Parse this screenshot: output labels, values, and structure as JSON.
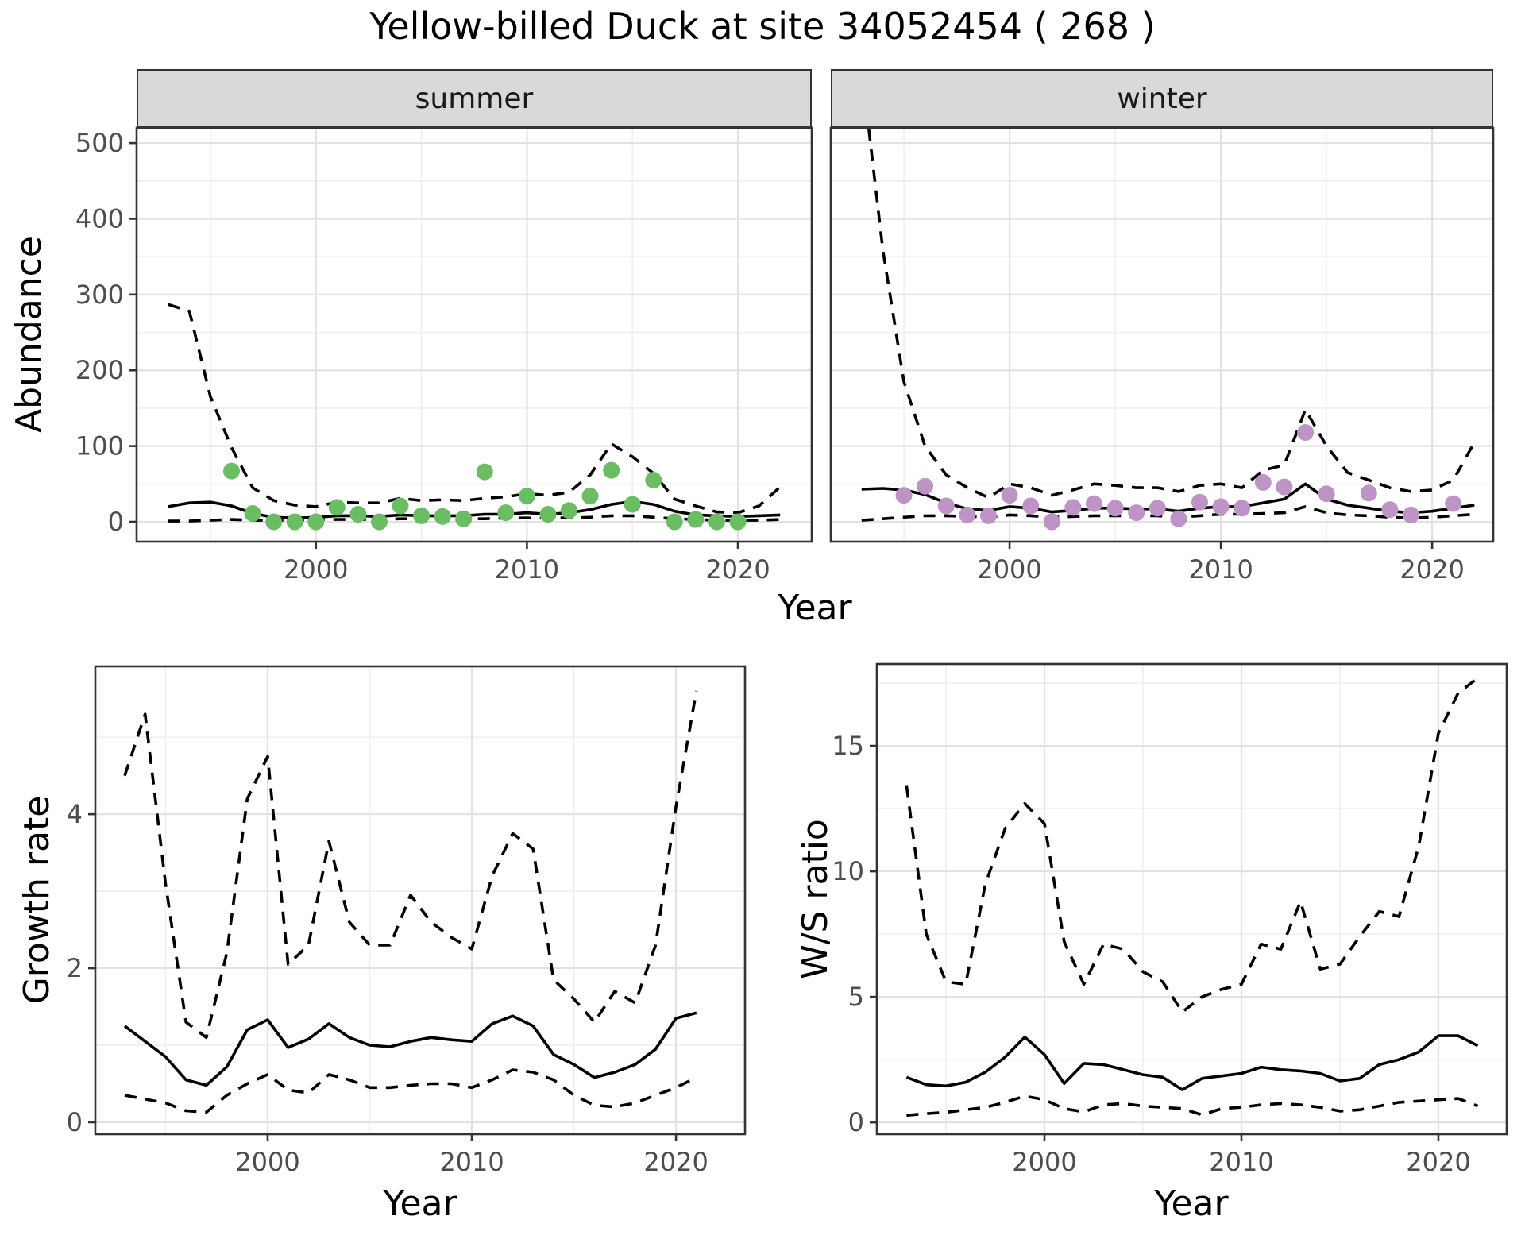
{
  "title": "Yellow-billed Duck at site 34052454 ( 268 )",
  "facets": [
    {
      "label": "summer"
    },
    {
      "label": "winter"
    }
  ],
  "axis_titles": {
    "abundance": "Abundance",
    "year": "Year",
    "growth_rate": "Growth rate",
    "ws_ratio": "W/S ratio"
  },
  "colors": {
    "summer_point": "#6abd62",
    "winter_point": "#be93c6",
    "line": "#000000",
    "strip_fill": "#d9d9d9",
    "panel_border": "#333333",
    "grid_major": "#e2e2e2",
    "grid_minor": "#efefef",
    "tick_label": "#4d4d4d"
  },
  "chart_data": [
    {
      "id": "abundance-summer",
      "type": "line",
      "facet": "summer",
      "xlabel": "Year",
      "ylabel": "Abundance",
      "xlim": [
        1991.5,
        2023.5
      ],
      "ylim": [
        -26.2,
        520
      ],
      "x_major": [
        2000,
        2010,
        2020
      ],
      "x_minor": [
        1995,
        2005,
        2015
      ],
      "y_major": [
        0,
        100,
        200,
        300,
        400,
        500
      ],
      "y_minor": [
        50,
        150,
        250,
        350,
        450
      ],
      "grid": true,
      "legend": "none",
      "point_color": "#6abd62",
      "point_name": "observed-count",
      "years": [
        1993,
        1994,
        1995,
        1996,
        1997,
        1998,
        1999,
        2000,
        2001,
        2002,
        2003,
        2004,
        2005,
        2006,
        2007,
        2008,
        2009,
        2010,
        2011,
        2012,
        2013,
        2014,
        2015,
        2016,
        2017,
        2018,
        2019,
        2020,
        2021,
        2022
      ],
      "series": [
        {
          "name": "upper-ci",
          "style": "dashed",
          "values": [
            287,
            278,
            165,
            98,
            45,
            28,
            22,
            20,
            26,
            25,
            25,
            31,
            28,
            29,
            28,
            31,
            33,
            37,
            35,
            39,
            62,
            103,
            86,
            64,
            30,
            21,
            13,
            12,
            21,
            46
          ]
        },
        {
          "name": "estimate",
          "style": "solid",
          "values": [
            20,
            25,
            26,
            21,
            11,
            6,
            5,
            6,
            8,
            8,
            7,
            9,
            8,
            8,
            8,
            10,
            10,
            12,
            10,
            12,
            16,
            23,
            27,
            23,
            14,
            9,
            8,
            7,
            8,
            9
          ]
        },
        {
          "name": "lower-ci",
          "style": "dashed",
          "values": [
            1,
            1,
            2,
            3,
            2,
            2,
            2,
            3,
            3,
            3,
            3,
            4,
            4,
            4,
            4,
            4,
            5,
            5,
            5,
            5,
            6,
            8,
            8,
            6,
            4,
            3,
            2,
            2,
            2,
            3
          ]
        }
      ],
      "points": {
        "years": [
          1996,
          1997,
          1998,
          1999,
          2000,
          2001,
          2002,
          2003,
          2004,
          2005,
          2006,
          2007,
          2008,
          2009,
          2010,
          2011,
          2012,
          2013,
          2014,
          2015,
          2016,
          2017,
          2018,
          2019,
          2020
        ],
        "values": [
          67,
          11,
          0,
          0,
          0,
          19,
          10,
          0,
          21,
          8,
          7,
          4,
          66,
          12,
          34,
          10,
          15,
          34,
          68,
          23,
          55,
          0,
          3,
          0,
          0
        ]
      }
    },
    {
      "id": "abundance-winter",
      "type": "line",
      "facet": "winter",
      "xlabel": "Year",
      "ylabel": "Abundance",
      "xlim": [
        1991.54,
        2022.89
      ],
      "ylim": [
        -26.2,
        520
      ],
      "x_major": [
        2000,
        2010,
        2020
      ],
      "x_minor": [
        1995,
        2005,
        2015
      ],
      "y_major": [
        0,
        100,
        200,
        300,
        400,
        500
      ],
      "y_minor": [
        50,
        150,
        250,
        350,
        450
      ],
      "grid": true,
      "legend": "none",
      "y_labels_hidden": true,
      "point_color": "#be93c6",
      "point_name": "observed-count",
      "years": [
        1993,
        1994,
        1995,
        1996,
        1997,
        1998,
        1999,
        2000,
        2001,
        2002,
        2003,
        2004,
        2005,
        2006,
        2007,
        2008,
        2009,
        2010,
        2011,
        2012,
        2013,
        2014,
        2015,
        2016,
        2017,
        2018,
        2019,
        2020,
        2021,
        2022
      ],
      "series": [
        {
          "name": "upper-ci",
          "style": "dashed",
          "values": [
            600,
            360,
            185,
            100,
            62,
            45,
            32,
            50,
            45,
            35,
            42,
            50,
            48,
            45,
            45,
            40,
            48,
            50,
            45,
            68,
            75,
            148,
            100,
            65,
            55,
            45,
            40,
            42,
            55,
            105
          ]
        },
        {
          "name": "estimate",
          "style": "solid",
          "values": [
            43,
            44,
            42,
            36,
            25,
            17,
            15,
            20,
            18,
            13,
            15,
            18,
            18,
            17,
            17,
            14,
            18,
            20,
            20,
            25,
            30,
            50,
            30,
            22,
            18,
            14,
            12,
            14,
            18,
            22
          ]
        },
        {
          "name": "lower-ci",
          "style": "dashed",
          "values": [
            2,
            4,
            6,
            8,
            8,
            7,
            6,
            9,
            8,
            6,
            7,
            8,
            8,
            8,
            8,
            6,
            8,
            10,
            10,
            11,
            12,
            20,
            12,
            9,
            8,
            6,
            5,
            6,
            8,
            10
          ]
        }
      ],
      "points": {
        "years": [
          1995,
          1996,
          1997,
          1998,
          1999,
          2000,
          2001,
          2002,
          2003,
          2004,
          2005,
          2006,
          2007,
          2008,
          2009,
          2010,
          2011,
          2012,
          2013,
          2014,
          2015,
          2017,
          2018,
          2019,
          2021
        ],
        "values": [
          35,
          47,
          21,
          9,
          8,
          35,
          21,
          0,
          19,
          24,
          18,
          12,
          18,
          4,
          26,
          20,
          18,
          52,
          46,
          118,
          37,
          38,
          16,
          9,
          24
        ]
      }
    },
    {
      "id": "growth-rate",
      "type": "line",
      "facet": null,
      "xlabel": "Year",
      "ylabel": "Growth rate",
      "xlim": [
        1991.56,
        2023.38
      ],
      "ylim": [
        -0.155,
        5.92
      ],
      "x_major": [
        2000,
        2010,
        2020
      ],
      "x_minor": [
        1995,
        2005,
        2015
      ],
      "y_major": [
        0,
        2,
        4
      ],
      "y_minor": [
        1,
        3,
        5
      ],
      "grid": true,
      "legend": "none",
      "years": [
        1993,
        1994,
        1995,
        1996,
        1997,
        1998,
        1999,
        2000,
        2001,
        2002,
        2003,
        2004,
        2005,
        2006,
        2007,
        2008,
        2009,
        2010,
        2011,
        2012,
        2013,
        2014,
        2015,
        2016,
        2017,
        2018,
        2019,
        2020,
        2021
      ],
      "series": [
        {
          "name": "upper-ci",
          "style": "dashed",
          "values": [
            4.5,
            5.3,
            3.1,
            1.3,
            1.1,
            2.2,
            4.2,
            4.75,
            2.05,
            2.3,
            3.65,
            2.6,
            2.3,
            2.3,
            2.95,
            2.6,
            2.4,
            2.25,
            3.2,
            3.75,
            3.55,
            1.85,
            1.6,
            1.3,
            1.7,
            1.55,
            2.3,
            4.1,
            5.6
          ]
        },
        {
          "name": "estimate",
          "style": "solid",
          "values": [
            1.25,
            1.05,
            0.85,
            0.55,
            0.48,
            0.72,
            1.2,
            1.33,
            0.97,
            1.08,
            1.28,
            1.1,
            1.0,
            0.98,
            1.05,
            1.1,
            1.07,
            1.05,
            1.28,
            1.38,
            1.25,
            0.88,
            0.75,
            0.58,
            0.65,
            0.75,
            0.95,
            1.35,
            1.42
          ]
        },
        {
          "name": "lower-ci",
          "style": "dashed",
          "values": [
            0.35,
            0.3,
            0.25,
            0.15,
            0.13,
            0.35,
            0.5,
            0.62,
            0.42,
            0.38,
            0.62,
            0.55,
            0.45,
            0.45,
            0.48,
            0.5,
            0.5,
            0.45,
            0.55,
            0.68,
            0.65,
            0.55,
            0.35,
            0.22,
            0.2,
            0.25,
            0.35,
            0.45,
            0.58
          ]
        }
      ]
    },
    {
      "id": "ws-ratio",
      "type": "line",
      "facet": null,
      "xlabel": "Year",
      "ylabel": "W/S ratio",
      "xlim": [
        1991.49,
        2023.47
      ],
      "ylim": [
        -0.47,
        18.26
      ],
      "x_major": [
        2000,
        2010,
        2020
      ],
      "x_minor": [
        1995,
        2005,
        2015
      ],
      "y_major": [
        0,
        5,
        10,
        15
      ],
      "y_minor": [
        2.5,
        7.5,
        12.5,
        17.5
      ],
      "grid": true,
      "legend": "none",
      "years": [
        1993,
        1994,
        1995,
        1996,
        1997,
        1998,
        1999,
        2000,
        2001,
        2002,
        2003,
        2004,
        2005,
        2006,
        2007,
        2008,
        2009,
        2010,
        2011,
        2012,
        2013,
        2014,
        2015,
        2016,
        2017,
        2018,
        2019,
        2020,
        2021,
        2022
      ],
      "series": [
        {
          "name": "upper-ci",
          "style": "dashed",
          "values": [
            13.4,
            7.5,
            5.6,
            5.5,
            9.5,
            11.7,
            12.7,
            11.9,
            7.2,
            5.5,
            7.1,
            6.9,
            6.0,
            5.6,
            4.4,
            5.0,
            5.3,
            5.5,
            7.1,
            6.9,
            8.8,
            6.1,
            6.3,
            7.4,
            8.4,
            8.2,
            11.0,
            15.5,
            17.1,
            17.7
          ]
        },
        {
          "name": "estimate",
          "style": "solid",
          "values": [
            1.8,
            1.5,
            1.45,
            1.6,
            2.0,
            2.6,
            3.4,
            2.7,
            1.55,
            2.35,
            2.3,
            2.1,
            1.9,
            1.8,
            1.3,
            1.75,
            1.85,
            1.95,
            2.2,
            2.1,
            2.05,
            1.95,
            1.65,
            1.75,
            2.3,
            2.5,
            2.8,
            3.45,
            3.45,
            3.05
          ]
        },
        {
          "name": "lower-ci",
          "style": "dashed",
          "values": [
            0.28,
            0.35,
            0.4,
            0.5,
            0.6,
            0.8,
            1.05,
            0.9,
            0.55,
            0.42,
            0.7,
            0.75,
            0.65,
            0.6,
            0.55,
            0.3,
            0.55,
            0.6,
            0.7,
            0.75,
            0.7,
            0.6,
            0.45,
            0.5,
            0.65,
            0.8,
            0.85,
            0.9,
            0.95,
            0.65
          ]
        }
      ]
    }
  ]
}
